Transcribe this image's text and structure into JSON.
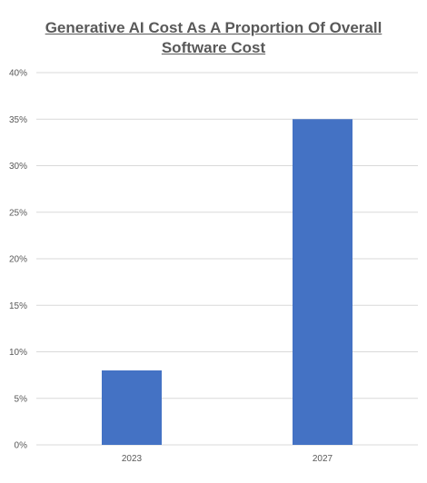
{
  "chart_data": {
    "type": "bar",
    "title": "Generative AI Cost As A Proportion Of Overall Software Cost",
    "title_lines": [
      "Generative AI Cost As A Proportion Of Overall",
      "Software Cost"
    ],
    "categories": [
      "2023",
      "2027"
    ],
    "values": [
      8,
      35
    ],
    "y_ticks": [
      "0%",
      "5%",
      "10%",
      "15%",
      "20%",
      "25%",
      "30%",
      "35%",
      "40%"
    ],
    "ylim": [
      0,
      40
    ],
    "xlabel": "",
    "ylabel": "",
    "grid": true,
    "legend": "none",
    "bar_color": "#4472C4",
    "grid_color": "#D9D9D9"
  }
}
